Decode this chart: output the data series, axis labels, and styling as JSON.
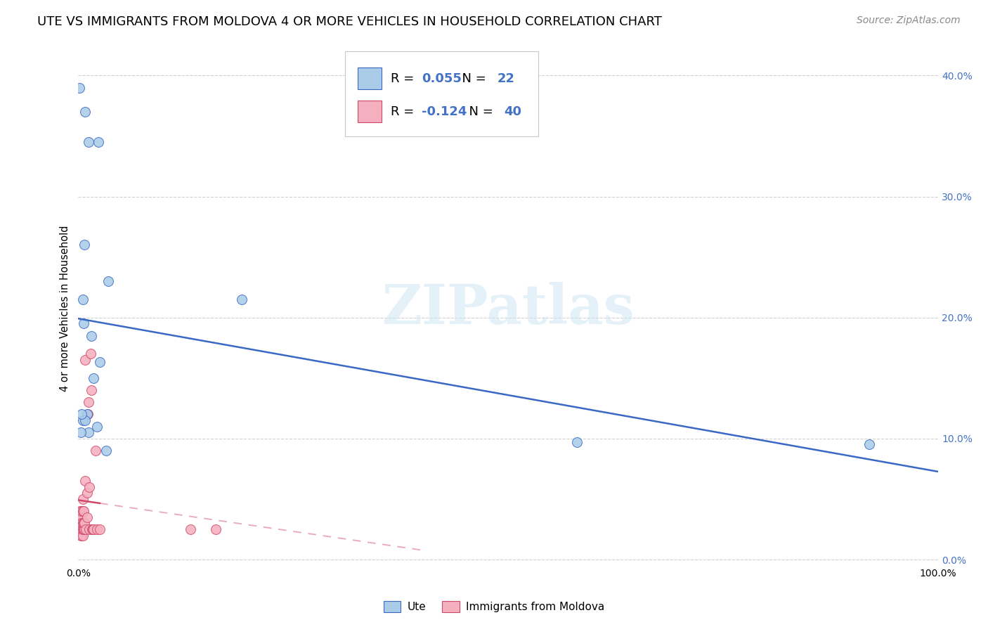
{
  "title": "UTE VS IMMIGRANTS FROM MOLDOVA 4 OR MORE VEHICLES IN HOUSEHOLD CORRELATION CHART",
  "source": "Source: ZipAtlas.com",
  "ylabel": "4 or more Vehicles in Household",
  "watermark": "ZIPatlas",
  "legend_label1": "Ute",
  "legend_label2": "Immigrants from Moldova",
  "R1": 0.055,
  "N1": 22,
  "R2": -0.124,
  "N2": 40,
  "ute_color": "#aacce8",
  "ute_line_color": "#3a68c4",
  "moldova_color": "#f5b0c0",
  "moldova_line_color": "#d04868",
  "blue_text_color": "#4472c4",
  "ute_x": [
    0.1,
    1.2,
    2.3,
    0.8,
    3.5,
    0.6,
    1.5,
    2.5,
    1.8,
    1.0,
    0.5,
    2.2,
    3.2,
    0.8,
    1.2,
    58.0,
    92.0,
    0.5,
    19.0,
    0.7,
    0.3,
    0.4
  ],
  "ute_y": [
    39.0,
    34.5,
    34.5,
    37.0,
    23.0,
    19.5,
    18.5,
    16.3,
    15.0,
    12.0,
    11.5,
    11.0,
    9.0,
    11.5,
    10.5,
    9.7,
    9.5,
    21.5,
    21.5,
    26.0,
    10.5,
    12.0
  ],
  "moldova_x": [
    0.2,
    0.2,
    0.2,
    0.3,
    0.3,
    0.3,
    0.3,
    0.4,
    0.4,
    0.4,
    0.4,
    0.5,
    0.5,
    0.5,
    0.5,
    0.5,
    0.6,
    0.6,
    0.6,
    0.7,
    0.7,
    0.8,
    0.8,
    0.9,
    1.0,
    1.0,
    1.1,
    1.2,
    1.3,
    1.3,
    1.4,
    1.5,
    1.6,
    1.7,
    1.8,
    2.0,
    2.2,
    2.5,
    13.0,
    16.0
  ],
  "moldova_y": [
    3.5,
    4.0,
    3.0,
    2.0,
    2.5,
    3.0,
    3.5,
    2.0,
    2.5,
    3.0,
    4.0,
    2.0,
    2.5,
    3.0,
    4.0,
    5.0,
    2.5,
    3.0,
    4.0,
    2.5,
    3.0,
    6.5,
    16.5,
    2.5,
    3.5,
    5.5,
    12.0,
    13.0,
    2.5,
    6.0,
    17.0,
    14.0,
    2.5,
    2.5,
    2.5,
    9.0,
    2.5,
    2.5,
    2.5,
    2.5
  ],
  "xlim": [
    0,
    100.0
  ],
  "ylim": [
    -0.5,
    42.0
  ],
  "yticks": [
    0.0,
    10.0,
    20.0,
    30.0,
    40.0
  ],
  "ytick_labels": [
    "0.0%",
    "10.0%",
    "20.0%",
    "30.0%",
    "40.0%"
  ],
  "xticks": [
    0.0,
    25.0,
    50.0,
    75.0,
    100.0
  ],
  "xtick_labels": [
    "0.0%",
    "",
    "",
    "",
    "100.0%"
  ],
  "grid_color": "#d0d0d0",
  "background_color": "#ffffff",
  "title_fontsize": 13,
  "axis_label_fontsize": 10.5,
  "tick_fontsize": 10,
  "legend_fontsize": 13,
  "source_fontsize": 10
}
